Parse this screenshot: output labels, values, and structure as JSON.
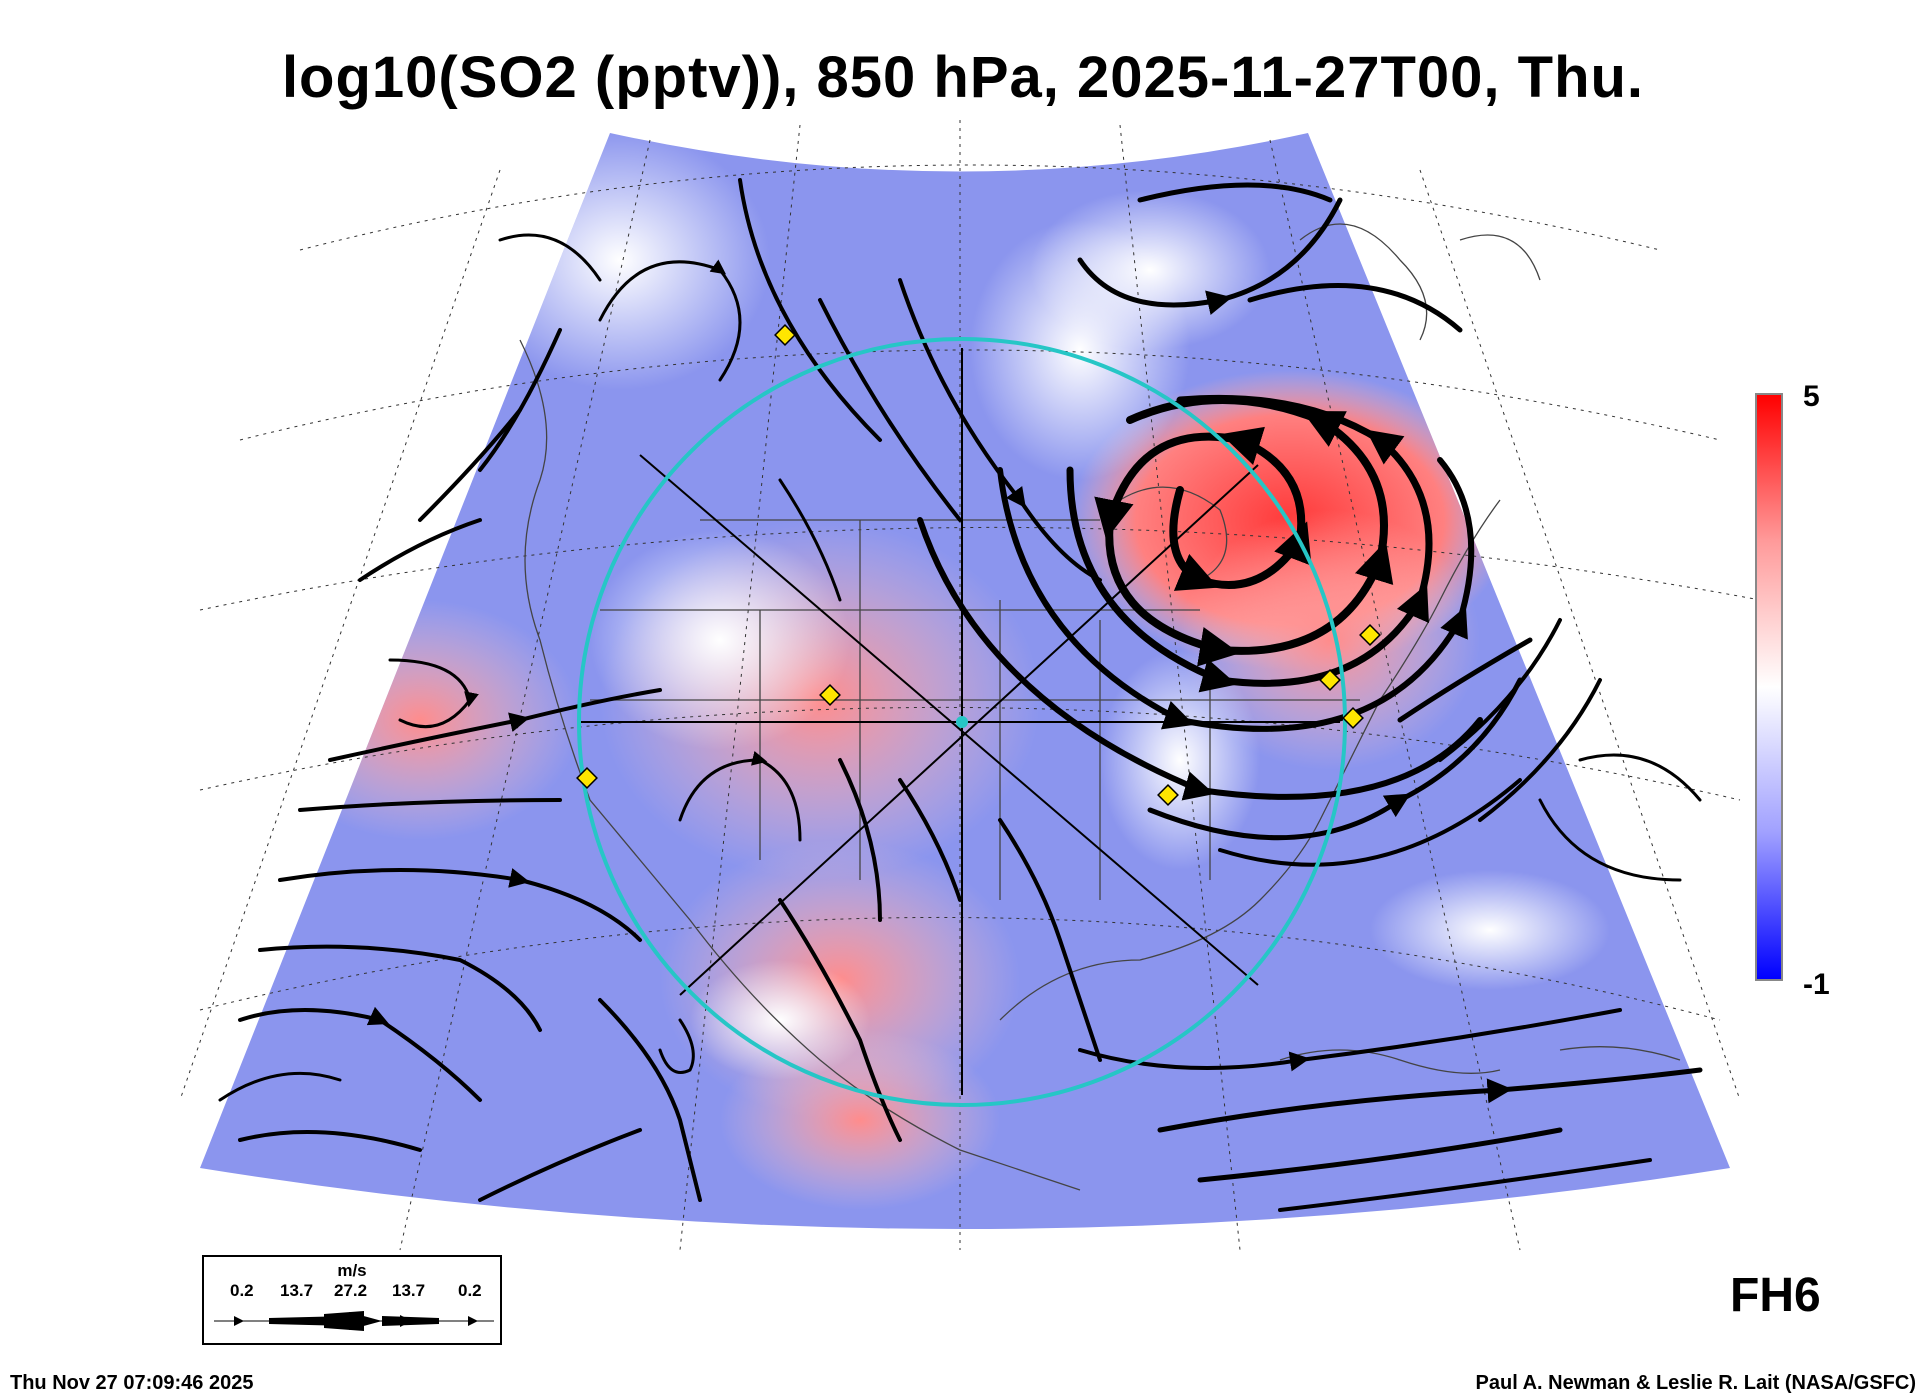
{
  "title": "log10(SO2 (pptv)), 850 hPa, 2025-11-27T00, Thu.",
  "colorbar": {
    "max_label": "5",
    "min_label": "-1",
    "colors": {
      "high": "#ff0000",
      "mid": "#ffffff",
      "low": "#0000ff"
    }
  },
  "forecast_hour_label": "FH6",
  "footer": {
    "timestamp": "Thu Nov 27 07:09:46 2025",
    "credit": "Paul A. Newman & Leslie R. Lait (NASA/GSFC)"
  },
  "wind_legend": {
    "unit": "m/s",
    "speeds": [
      "0.2",
      "13.7",
      "27.2",
      "13.7",
      "0.2"
    ]
  },
  "map": {
    "range_ring_color": "#26c6c6",
    "station_marker_color": "#ffe600",
    "streamline_color": "#000000",
    "land_color": "#ffffff",
    "low_value_color": "#7d88f0",
    "high_value_color": "#ff6060"
  }
}
